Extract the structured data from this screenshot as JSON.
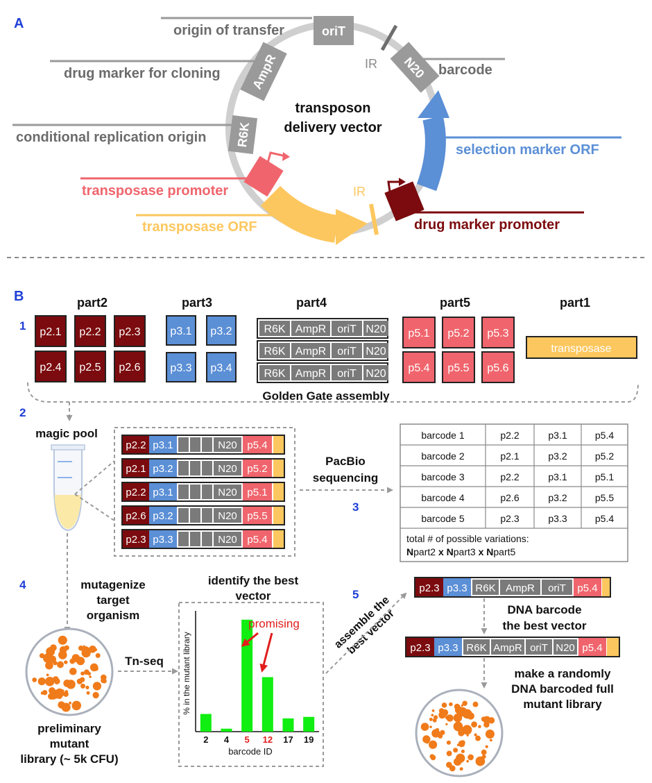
{
  "panel_a": {
    "letter": "A",
    "center_title": [
      "transposon",
      "delivery vector"
    ],
    "segments": {
      "oriT": "oriT",
      "ampr": "AmpR",
      "r6k": "R6K",
      "n20": "N20",
      "ir": "IR"
    },
    "labels": {
      "origin_of_transfer": "origin of transfer",
      "drug_marker_cloning": "drug marker for cloning",
      "conditional_origin": "conditional replication origin",
      "transposase_promoter": "transposase promoter",
      "transposase_orf": "transposase ORF",
      "barcode": "barcode",
      "selection_marker_orf": "selection marker ORF",
      "drug_marker_promoter": "drug marker promoter"
    },
    "colors": {
      "gray": "#9a9a9a",
      "ring": "#cfcfcf",
      "red": "#f0656d",
      "yellow": "#fdc75f",
      "blue": "#5b8fd6",
      "darkred": "#7b0b0e",
      "orange": "#f07b1a",
      "green": "#11ee11"
    }
  },
  "panel_b": {
    "letter": "B",
    "step_numbers": [
      "1",
      "2",
      "3",
      "4",
      "5"
    ],
    "part_headers": [
      "part2",
      "part3",
      "part4",
      "part5",
      "part1"
    ],
    "part2": [
      "p2.1",
      "p2.2",
      "p2.3",
      "p2.4",
      "p2.5",
      "p2.6"
    ],
    "part3": [
      "p3.1",
      "p3.2",
      "p3.3",
      "p3.4"
    ],
    "part4_items": [
      "R6K",
      "AmpR",
      "oriT",
      "N20"
    ],
    "part5": [
      "p5.1",
      "p5.2",
      "p5.3",
      "p5.4",
      "p5.5",
      "p5.6"
    ],
    "part1": "transposase",
    "golden_gate": "Golden Gate assembly",
    "magic_pool": "magic pool",
    "pool_rows": [
      {
        "p2": "p2.2",
        "p3": "p3.1",
        "n20": "N20",
        "p5": "p5.4"
      },
      {
        "p2": "p2.1",
        "p3": "p3.2",
        "n20": "N20",
        "p5": "p5.2"
      },
      {
        "p2": "p2.2",
        "p3": "p3.1",
        "n20": "N20",
        "p5": "p5.1"
      },
      {
        "p2": "p2.6",
        "p3": "p3.2",
        "n20": "N20",
        "p5": "p5.5"
      },
      {
        "p2": "p2.3",
        "p3": "p3.3",
        "n20": "N20",
        "p5": "p5.4"
      }
    ],
    "pacbio": [
      "PacBio",
      "sequencing"
    ],
    "barcode_table": [
      [
        "barcode  1",
        "p2.2",
        "p3.1",
        "p5.4"
      ],
      [
        "barcode  2",
        "p2.1",
        "p3.2",
        "p5.2"
      ],
      [
        "barcode  3",
        "p2.2",
        "p3.1",
        "p5.1"
      ],
      [
        "barcode  4",
        "p2.6",
        "p3.2",
        "p5.5"
      ],
      [
        "barcode  5",
        "p2.3",
        "p3.3",
        "p5.4"
      ]
    ],
    "variations_line1": "total # of possible variations:",
    "variations_n": "N",
    "variations_part2": "part2",
    "variations_part3": "part3",
    "variations_part5": "part5",
    "variations_x": " x ",
    "mutagenize": [
      "mutagenize",
      "target",
      "organism"
    ],
    "tnseq": "Tn-seq",
    "preliminary": [
      "preliminary",
      "mutant",
      "library (~ 5k CFU)"
    ],
    "identify": [
      "identify the best",
      "vector"
    ],
    "promising": "promising",
    "assemble": [
      "assemble the",
      "best vector"
    ],
    "best_vector_top": {
      "p2": "p2.3",
      "p3": "p3.3",
      "items": [
        "R6K",
        "AmpR",
        "oriT"
      ],
      "p5": "p5.4"
    },
    "dna_barcode": [
      "DNA barcode",
      "the best vector"
    ],
    "best_vector_bottom": {
      "p2": "p2.3",
      "p3": "p3.3",
      "items": [
        "R6K",
        "AmpR",
        "oriT",
        "N20"
      ],
      "p5": "p5.4"
    },
    "make_library": [
      "make a randomly",
      "DNA barcoded full",
      "mutant library"
    ]
  },
  "chart_data": {
    "type": "bar",
    "title": "identify the best vector",
    "xlabel": "barcode ID",
    "ylabel": "% in the mutant library",
    "categories": [
      "2",
      "4",
      "5",
      "12",
      "17",
      "19"
    ],
    "highlighted_categories": [
      "5",
      "12"
    ],
    "values": [
      12,
      2,
      76,
      37,
      9,
      10
    ],
    "ylim": [
      0,
      82
    ],
    "y_tick_labels": false,
    "bar_color": "#11ee11"
  }
}
